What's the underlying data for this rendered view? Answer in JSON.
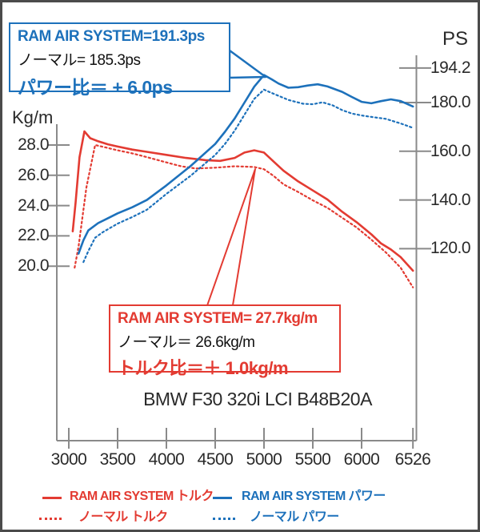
{
  "colors": {
    "red": "#e33b32",
    "blue": "#1d71bb",
    "axis": "#8a8a8a"
  },
  "chart_data": {
    "type": "line",
    "title": "BMW F30 320i LCI B48B20A",
    "x_axis": {
      "ticks": [
        "3000",
        "3500",
        "4000",
        "4500",
        "5000",
        "5500",
        "6000",
        "6526"
      ],
      "values": [
        3000,
        3500,
        4000,
        4500,
        5000,
        5500,
        6000,
        6526
      ],
      "range": [
        3000,
        6526
      ]
    },
    "left_axis": {
      "label": "Kg/m",
      "ticks": [
        "28.0",
        "26.0",
        "24.0",
        "22.0",
        "20.0"
      ],
      "values": [
        28,
        26,
        24,
        22,
        20
      ],
      "range": [
        19,
        29.5
      ]
    },
    "right_axis": {
      "label": "PS",
      "ticks": [
        "194.2",
        "180.0",
        "160.0",
        "140.0",
        "120.0"
      ],
      "values": [
        194.2,
        180,
        160,
        140,
        120
      ],
      "range": [
        100,
        196
      ]
    },
    "series": [
      {
        "name": "RAM AIR SYSTEM トルク",
        "axis": "torque",
        "style": "solid",
        "color": "#e33b32",
        "points": [
          [
            3040,
            22.3
          ],
          [
            3070,
            24.2
          ],
          [
            3110,
            27.2
          ],
          [
            3160,
            28.9
          ],
          [
            3220,
            28.45
          ],
          [
            3300,
            28.25
          ],
          [
            3400,
            28.05
          ],
          [
            3500,
            27.9
          ],
          [
            3650,
            27.7
          ],
          [
            3800,
            27.55
          ],
          [
            4000,
            27.35
          ],
          [
            4200,
            27.15
          ],
          [
            4400,
            27.0
          ],
          [
            4550,
            26.95
          ],
          [
            4700,
            27.15
          ],
          [
            4800,
            27.5
          ],
          [
            4900,
            27.65
          ],
          [
            5000,
            27.5
          ],
          [
            5100,
            26.9
          ],
          [
            5200,
            26.3
          ],
          [
            5350,
            25.6
          ],
          [
            5500,
            25.0
          ],
          [
            5650,
            24.4
          ],
          [
            5800,
            23.6
          ],
          [
            5950,
            22.9
          ],
          [
            6100,
            22.1
          ],
          [
            6200,
            21.5
          ],
          [
            6300,
            21.1
          ],
          [
            6400,
            20.6
          ],
          [
            6526,
            19.7
          ]
        ]
      },
      {
        "name": "ノーマル トルク",
        "axis": "torque",
        "style": "dotted",
        "color": "#e33b32",
        "points": [
          [
            3060,
            19.9
          ],
          [
            3100,
            21.3
          ],
          [
            3180,
            25.2
          ],
          [
            3270,
            28.0
          ],
          [
            3370,
            27.85
          ],
          [
            3500,
            27.65
          ],
          [
            3650,
            27.45
          ],
          [
            3800,
            27.2
          ],
          [
            4000,
            26.85
          ],
          [
            4150,
            26.6
          ],
          [
            4300,
            26.45
          ],
          [
            4500,
            26.5
          ],
          [
            4700,
            26.6
          ],
          [
            4900,
            26.55
          ],
          [
            5000,
            26.4
          ],
          [
            5100,
            25.95
          ],
          [
            5200,
            25.4
          ],
          [
            5350,
            24.9
          ],
          [
            5500,
            24.35
          ],
          [
            5650,
            23.85
          ],
          [
            5800,
            23.2
          ],
          [
            5950,
            22.55
          ],
          [
            6100,
            21.75
          ],
          [
            6250,
            20.9
          ],
          [
            6400,
            19.9
          ],
          [
            6526,
            18.6
          ]
        ]
      },
      {
        "name": "RAM AIR SYSTEM パワー",
        "axis": "power",
        "style": "solid",
        "color": "#1d71bb",
        "points": [
          [
            3100,
            118
          ],
          [
            3150,
            123.5
          ],
          [
            3200,
            127.5
          ],
          [
            3300,
            130.5
          ],
          [
            3400,
            132.5
          ],
          [
            3500,
            134.5
          ],
          [
            3650,
            137
          ],
          [
            3800,
            140
          ],
          [
            4000,
            146
          ],
          [
            4250,
            154
          ],
          [
            4500,
            163
          ],
          [
            4600,
            168
          ],
          [
            4700,
            173.5
          ],
          [
            4800,
            180
          ],
          [
            4900,
            186.5
          ],
          [
            5000,
            191.3
          ],
          [
            5080,
            189.5
          ],
          [
            5150,
            187.8
          ],
          [
            5250,
            186.1
          ],
          [
            5350,
            186.3
          ],
          [
            5450,
            187.0
          ],
          [
            5550,
            187.5
          ],
          [
            5650,
            186.6
          ],
          [
            5800,
            184.4
          ],
          [
            5900,
            182.3
          ],
          [
            6000,
            180.3
          ],
          [
            6100,
            179.7
          ],
          [
            6200,
            180.6
          ],
          [
            6300,
            181.3
          ],
          [
            6400,
            180.6
          ],
          [
            6526,
            178.4
          ]
        ]
      },
      {
        "name": "ノーマル パワー",
        "axis": "power",
        "style": "dotted",
        "color": "#1d71bb",
        "points": [
          [
            3150,
            114.5
          ],
          [
            3200,
            119
          ],
          [
            3270,
            124.5
          ],
          [
            3350,
            126.8
          ],
          [
            3500,
            130.3
          ],
          [
            3650,
            133
          ],
          [
            3800,
            136
          ],
          [
            4000,
            142.5
          ],
          [
            4250,
            150
          ],
          [
            4500,
            158.5
          ],
          [
            4600,
            163
          ],
          [
            4700,
            168.5
          ],
          [
            4800,
            175
          ],
          [
            4900,
            181.5
          ],
          [
            5000,
            185.3
          ],
          [
            5100,
            183.6
          ],
          [
            5250,
            181.1
          ],
          [
            5400,
            179.5
          ],
          [
            5500,
            179.3
          ],
          [
            5600,
            180.1
          ],
          [
            5700,
            178.9
          ],
          [
            5800,
            176.9
          ],
          [
            5900,
            175.5
          ],
          [
            6000,
            174.7
          ],
          [
            6100,
            174.1
          ],
          [
            6250,
            173.3
          ],
          [
            6400,
            171.4
          ],
          [
            6526,
            169.6
          ]
        ]
      }
    ],
    "annotations": {
      "power_box": {
        "line1": "RAM AIR SYSTEM=191.3ps",
        "line2": "ノーマル=  185.3ps",
        "line3": "パワー比＝ + 6.0ps"
      },
      "torque_box": {
        "line1": "RAM AIR SYSTEM= 27.7kg/m",
        "line2": "ノーマル＝ 26.6kg/m",
        "line3": "トルク比＝＋ 1.0kg/m"
      }
    },
    "legend_position": "bottom"
  }
}
